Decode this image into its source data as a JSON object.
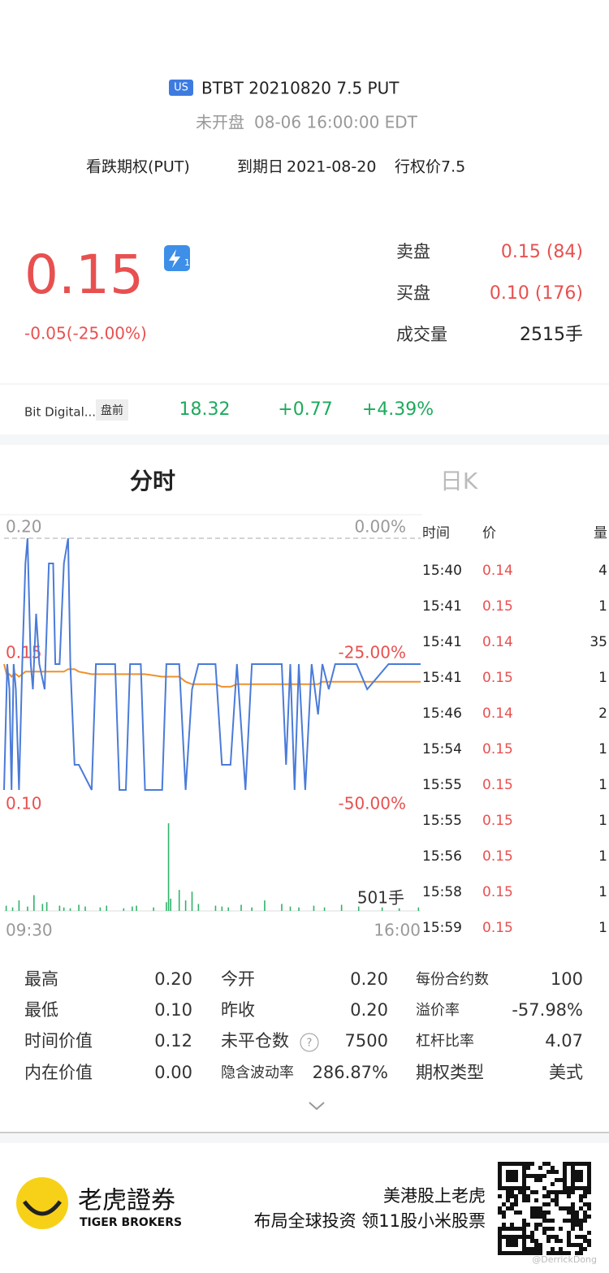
{
  "header": {
    "badge": "US",
    "title": "BTBT 20210820 7.5 PUT",
    "status": "未开盘",
    "time": "08-06 16:00:00 EDT",
    "option_type": "看跌期权(PUT)",
    "expiry_label": "到期日",
    "expiry": "2021-08-20",
    "strike": "行权价7.5"
  },
  "quote": {
    "price": "0.15",
    "badge": "1",
    "change": "-0.05(-25.00%)",
    "ask_label": "卖盘",
    "ask": "0.15 (84)",
    "bid_label": "买盘",
    "bid": "0.10 (176)",
    "volume_label": "成交量",
    "volume": "2515手"
  },
  "underlying": {
    "name": "Bit Digital...",
    "tag": "盘前",
    "price": "18.32",
    "change": "+0.77",
    "pct": "+4.39%"
  },
  "tabs": [
    "分时",
    "日K"
  ],
  "chart_data": [
    {
      "type": "line",
      "x": [
        0,
        3,
        5,
        7,
        9,
        11,
        14,
        17,
        20,
        22,
        25,
        27,
        30,
        33,
        38,
        42,
        46,
        48,
        52,
        56,
        60,
        62,
        66,
        70,
        82,
        86,
        90,
        104,
        108,
        114,
        118,
        128,
        132,
        148,
        152,
        164,
        170,
        176,
        182,
        198,
        204,
        212,
        218,
        226,
        232,
        260,
        264,
        268,
        272,
        276,
        282,
        288,
        294,
        298,
        304,
        310,
        330,
        340,
        360,
        390
      ],
      "series": [
        {
          "name": "价格",
          "color": "#4a7bd9",
          "values": [
            0.1,
            0.15,
            0.14,
            0.1,
            0.15,
            0.14,
            0.1,
            0.15,
            0.19,
            0.2,
            0.15,
            0.14,
            0.17,
            0.15,
            0.14,
            0.19,
            0.19,
            0.15,
            0.15,
            0.19,
            0.2,
            0.15,
            0.11,
            0.11,
            0.1,
            0.15,
            0.15,
            0.15,
            0.1,
            0.1,
            0.15,
            0.15,
            0.1,
            0.1,
            0.15,
            0.15,
            0.1,
            0.14,
            0.15,
            0.15,
            0.11,
            0.11,
            0.15,
            0.1,
            0.15,
            0.15,
            0.11,
            0.15,
            0.1,
            0.15,
            0.1,
            0.15,
            0.13,
            0.15,
            0.14,
            0.15,
            0.15,
            0.14,
            0.15,
            0.15
          ]
        },
        {
          "name": "均价",
          "color": "#f0902a",
          "values": [
            0.15,
            0.145,
            0.146,
            0.145,
            0.146,
            0.146,
            0.145,
            0.146,
            0.147,
            0.147,
            0.147,
            0.147,
            0.147,
            0.147,
            0.147,
            0.147,
            0.147,
            0.147,
            0.147,
            0.147,
            0.148,
            0.148,
            0.148,
            0.147,
            0.146,
            0.146,
            0.146,
            0.146,
            0.146,
            0.146,
            0.146,
            0.146,
            0.146,
            0.145,
            0.145,
            0.145,
            0.143,
            0.142,
            0.142,
            0.142,
            0.141,
            0.141,
            0.142,
            0.142,
            0.142,
            0.142,
            0.142,
            0.142,
            0.142,
            0.142,
            0.142,
            0.142,
            0.142,
            0.143,
            0.143,
            0.143,
            0.143,
            0.143,
            0.143,
            0.143
          ]
        }
      ],
      "xlim": [
        0,
        390
      ],
      "xticks": [
        {
          "value": 0,
          "label": "09:30"
        },
        {
          "value": 390,
          "label": "16:00"
        }
      ],
      "ylim": [
        0.1,
        0.2
      ],
      "yticks": [
        {
          "value": 0.2,
          "label": "0.20"
        },
        {
          "value": 0.15,
          "label": "0.15"
        },
        {
          "value": 0.1,
          "label": "0.10"
        }
      ],
      "y2lim": [
        -50,
        0
      ],
      "y2ticks": [
        {
          "value": 0,
          "label": "0.00%"
        },
        {
          "value": -25,
          "label": "-25.00%"
        },
        {
          "value": -50,
          "label": "-50.00%"
        }
      ]
    },
    {
      "type": "bar",
      "annotation": "501手",
      "color": "#2fb36a",
      "x": [
        2,
        8,
        14,
        22,
        28,
        36,
        40,
        52,
        56,
        62,
        70,
        76,
        90,
        96,
        112,
        120,
        124,
        140,
        152,
        154,
        156,
        164,
        170,
        176,
        182,
        198,
        204,
        210,
        222,
        232,
        244,
        260,
        268,
        276,
        290,
        300,
        316,
        332,
        354,
        370,
        388
      ],
      "values": [
        30,
        20,
        60,
        25,
        90,
        40,
        50,
        30,
        20,
        15,
        35,
        25,
        20,
        30,
        15,
        25,
        30,
        20,
        50,
        501,
        70,
        120,
        60,
        110,
        40,
        30,
        25,
        20,
        35,
        20,
        60,
        40,
        25,
        20,
        30,
        20,
        35,
        25,
        20,
        15,
        20
      ],
      "xlim": [
        0,
        390
      ],
      "ylim": [
        0,
        520
      ]
    }
  ],
  "trades": {
    "headers": [
      "时间",
      "价",
      "量"
    ],
    "rows": [
      [
        "15:40",
        "0.14",
        4
      ],
      [
        "15:41",
        "0.15",
        1
      ],
      [
        "15:41",
        "0.14",
        35
      ],
      [
        "15:41",
        "0.15",
        1
      ],
      [
        "15:46",
        "0.14",
        2
      ],
      [
        "15:54",
        "0.15",
        1
      ],
      [
        "15:55",
        "0.15",
        1
      ],
      [
        "15:55",
        "0.15",
        1
      ],
      [
        "15:56",
        "0.15",
        1
      ],
      [
        "15:58",
        "0.15",
        1
      ],
      [
        "15:59",
        "0.15",
        1
      ]
    ]
  },
  "stats": {
    "rows": [
      [
        "最高",
        "0.20",
        "今开",
        "0.20",
        "每份合约数",
        "100"
      ],
      [
        "最低",
        "0.10",
        "昨收",
        "0.20",
        "溢价率",
        "-57.98%"
      ],
      [
        "时间价值",
        "0.12",
        "未平仓数",
        "7500",
        "杠杆比率",
        "4.07"
      ],
      [
        "内在价值",
        "0.00",
        "隐含波动率",
        "286.87%",
        "期权类型",
        "美式"
      ]
    ]
  },
  "footer": {
    "brand": "老虎證券",
    "brand_en": "TIGER BROKERS",
    "slogan_1": "美港股上老虎",
    "slogan_2": "布局全球投资 领11股小米股票",
    "watermark": "@DerrickDong"
  }
}
